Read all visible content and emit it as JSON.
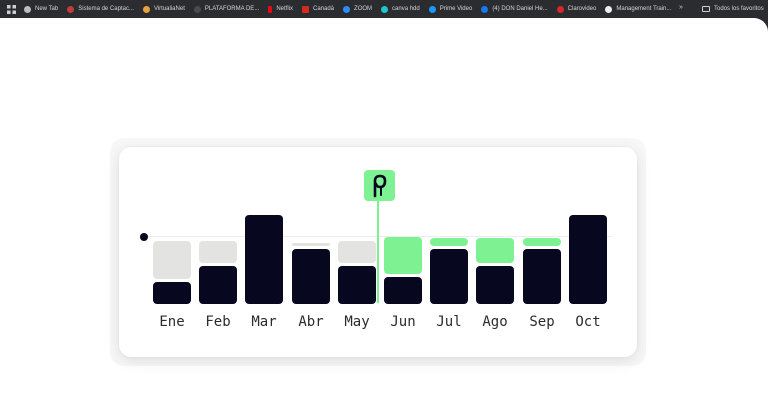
{
  "bookmarks": {
    "items": [
      {
        "label": "New Tab",
        "icon": "globe-icon",
        "color": "#bdbdbd"
      },
      {
        "label": "Sistema de Captac...",
        "icon": "site-icon",
        "color": "#c23b3b"
      },
      {
        "label": "VirtualiaNet",
        "icon": "site-icon",
        "color": "#e7a23c"
      },
      {
        "label": "PLATAFORMA DE...",
        "icon": "site-icon",
        "color": "#4a4a4a"
      },
      {
        "label": "Netflix",
        "icon": "netflix-icon",
        "color": "#e50914"
      },
      {
        "label": "Canadá",
        "icon": "flag-icon",
        "color": "#d52b1e"
      },
      {
        "label": "ZOOM",
        "icon": "zoom-icon",
        "color": "#2d8cff"
      },
      {
        "label": "canva hdd",
        "icon": "canva-icon",
        "color": "#20c4cb"
      },
      {
        "label": "Prime Video",
        "icon": "prime-icon",
        "color": "#1a98ff"
      },
      {
        "label": "(4) DON Daniel He...",
        "icon": "facebook-icon",
        "color": "#1877f2"
      },
      {
        "label": "Clarovideo",
        "icon": "claro-icon",
        "color": "#d8262c"
      },
      {
        "label": "Management Train...",
        "icon": "info-icon",
        "color": "#eeeeee"
      }
    ],
    "more": "»",
    "all_bookmarks": "Todos los favoritos"
  },
  "marker_glyph": "ℓ",
  "chart_data": {
    "type": "bar",
    "categories": [
      "Ene",
      "Feb",
      "Mar",
      "Abr",
      "May",
      "Jun",
      "Jul",
      "Ago",
      "Sep",
      "Oct"
    ],
    "series": [
      {
        "values": [
          22,
          38,
          89,
          55,
          38,
          27,
          55,
          38,
          55,
          89
        ]
      },
      {
        "values": [
          38,
          22,
          0,
          3,
          22,
          37,
          8,
          25,
          8,
          0
        ]
      }
    ],
    "highlight": [
      "no",
      "no",
      "no",
      "no",
      "no",
      "yes",
      "yes",
      "yes",
      "yes",
      "no"
    ],
    "colors": {
      "base": "#070720",
      "upper": "#e3e4e1",
      "highlight": "#7ef293"
    },
    "selected": "Jun"
  }
}
